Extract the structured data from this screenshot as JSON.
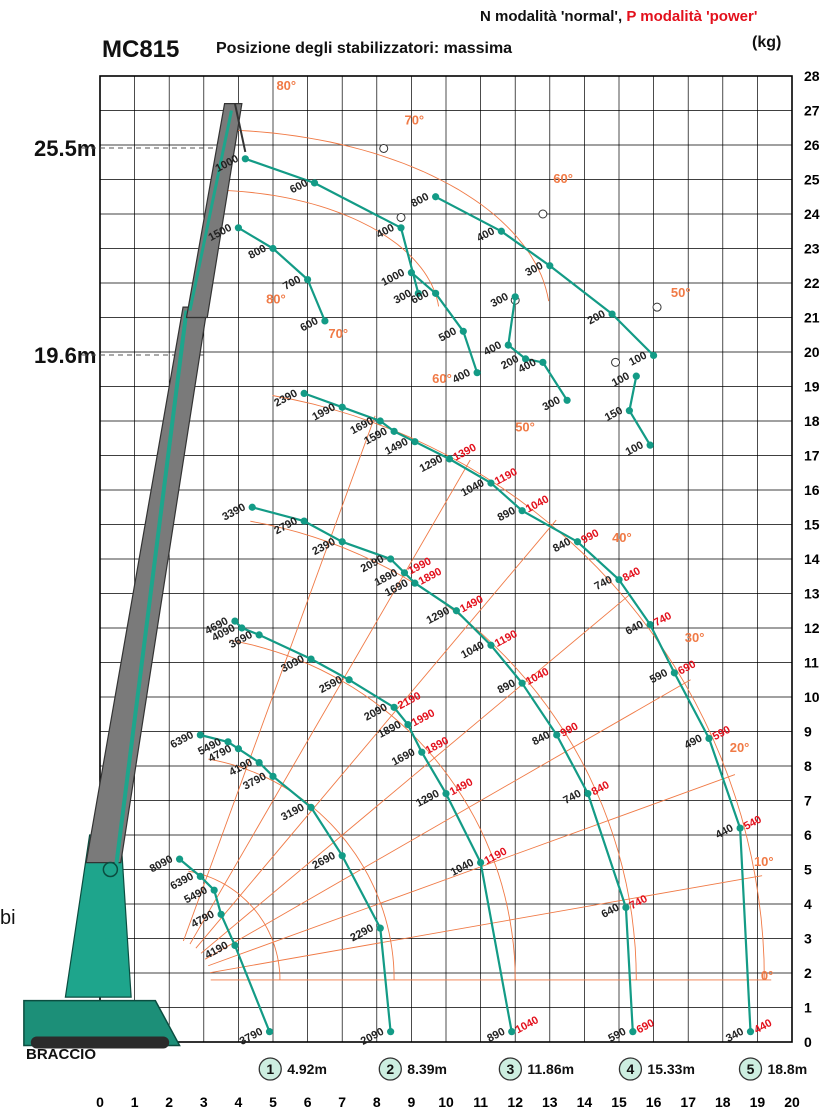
{
  "header": {
    "model": "MC815",
    "subtitle": "Posizione degli stabilizzatori: massima",
    "mode_normal": "N modalità 'normal',",
    "mode_power": "P modalità 'power'",
    "unit": "(kg)"
  },
  "heights": [
    "25.5m",
    "19.6m"
  ],
  "braccio": "BRACCIO",
  "fragment": "bi",
  "colors": {
    "teal": "#139b86",
    "orange": "#f07a46",
    "red": "#e3101c",
    "boom": "#7a7a7a",
    "grid": "#000000"
  },
  "axes": {
    "x_ticks": [
      0,
      1,
      2,
      3,
      4,
      5,
      6,
      7,
      8,
      9,
      10,
      11,
      12,
      13,
      14,
      15,
      16,
      17,
      18,
      19,
      20
    ],
    "y_ticks": [
      0,
      1,
      2,
      3,
      4,
      5,
      6,
      7,
      8,
      9,
      10,
      11,
      12,
      13,
      14,
      15,
      16,
      17,
      18,
      19,
      20,
      21,
      22,
      23,
      24,
      25,
      26,
      27,
      28
    ]
  },
  "reach_markers": [
    {
      "num": "1",
      "label": "4.92m",
      "x": 4.92
    },
    {
      "num": "2",
      "label": "8.39m",
      "x": 8.39
    },
    {
      "num": "3",
      "label": "11.86m",
      "x": 11.86
    },
    {
      "num": "4",
      "label": "15.33m",
      "x": 15.33
    },
    {
      "num": "5",
      "label": "18.8m",
      "x": 18.8
    }
  ],
  "main_curves": [
    {
      "id": 1,
      "points": [
        {
          "x": 4.9,
          "y": 0.3,
          "n": "3790"
        },
        {
          "x": 3.9,
          "y": 2.8,
          "n": "4190"
        },
        {
          "x": 3.5,
          "y": 3.7,
          "n": "4790"
        },
        {
          "x": 3.3,
          "y": 4.4,
          "n": "5490"
        },
        {
          "x": 2.9,
          "y": 4.8,
          "n": "6390"
        },
        {
          "x": 2.3,
          "y": 5.3,
          "n": "8090"
        }
      ]
    },
    {
      "id": 2,
      "points": [
        {
          "x": 8.4,
          "y": 0.3,
          "n": "2090"
        },
        {
          "x": 8.1,
          "y": 3.3,
          "n": "2290"
        },
        {
          "x": 7.0,
          "y": 5.4,
          "n": "2690"
        },
        {
          "x": 6.1,
          "y": 6.8,
          "n": "3190"
        },
        {
          "x": 5.0,
          "y": 7.7,
          "n": "3790"
        },
        {
          "x": 4.6,
          "y": 8.1,
          "n": "4190"
        },
        {
          "x": 4.0,
          "y": 8.5,
          "n": "4790"
        },
        {
          "x": 3.7,
          "y": 8.7,
          "n": "5490"
        },
        {
          "x": 2.9,
          "y": 8.9,
          "n": "6390"
        }
      ]
    },
    {
      "id": 3,
      "points": [
        {
          "x": 11.9,
          "y": 0.3,
          "n": "890",
          "p": "1040"
        },
        {
          "x": 11.0,
          "y": 5.2,
          "n": "1040",
          "p": "1190"
        },
        {
          "x": 10.0,
          "y": 7.2,
          "n": "1290",
          "p": "1490"
        },
        {
          "x": 9.3,
          "y": 8.4,
          "n": "1690",
          "p": "1890"
        },
        {
          "x": 8.9,
          "y": 9.2,
          "n": "1890",
          "p": "1990"
        },
        {
          "x": 8.5,
          "y": 9.7,
          "n": "2090",
          "p": "2190"
        },
        {
          "x": 7.2,
          "y": 10.5,
          "n": "2590"
        },
        {
          "x": 6.1,
          "y": 11.1,
          "n": "3090"
        },
        {
          "x": 4.6,
          "y": 11.8,
          "n": "3690"
        },
        {
          "x": 4.1,
          "y": 12.0,
          "n": "4090"
        },
        {
          "x": 3.9,
          "y": 12.2,
          "n": "4690"
        }
      ]
    },
    {
      "id": 4,
      "points": [
        {
          "x": 15.4,
          "y": 0.3,
          "n": "590",
          "p": "690"
        },
        {
          "x": 15.2,
          "y": 3.9,
          "n": "640",
          "p": "740"
        },
        {
          "x": 14.1,
          "y": 7.2,
          "n": "740",
          "p": "840"
        },
        {
          "x": 13.2,
          "y": 8.9,
          "n": "840",
          "p": "990"
        },
        {
          "x": 12.2,
          "y": 10.4,
          "n": "890",
          "p": "1040"
        },
        {
          "x": 11.3,
          "y": 11.5,
          "n": "1040",
          "p": "1190"
        },
        {
          "x": 10.3,
          "y": 12.5,
          "n": "1290",
          "p": "1490"
        },
        {
          "x": 9.1,
          "y": 13.3,
          "n": "1690",
          "p": "1890"
        },
        {
          "x": 8.8,
          "y": 13.6,
          "n": "1890",
          "p": "1990"
        },
        {
          "x": 8.4,
          "y": 14.0,
          "n": "2090"
        },
        {
          "x": 7.0,
          "y": 14.5,
          "n": "2390"
        },
        {
          "x": 5.9,
          "y": 15.1,
          "n": "2790"
        },
        {
          "x": 4.4,
          "y": 15.5,
          "n": "3390"
        }
      ]
    },
    {
      "id": 5,
      "points": [
        {
          "x": 18.8,
          "y": 0.3,
          "n": "340",
          "p": "440"
        },
        {
          "x": 18.5,
          "y": 6.2,
          "n": "440",
          "p": "540"
        },
        {
          "x": 17.6,
          "y": 8.8,
          "n": "490",
          "p": "590"
        },
        {
          "x": 16.6,
          "y": 10.7,
          "n": "590",
          "p": "690"
        },
        {
          "x": 15.9,
          "y": 12.1,
          "n": "640",
          "p": "740"
        },
        {
          "x": 15.0,
          "y": 13.4,
          "n": "740",
          "p": "840"
        },
        {
          "x": 13.8,
          "y": 14.5,
          "n": "840",
          "p": "990"
        },
        {
          "x": 12.2,
          "y": 15.4,
          "n": "890",
          "p": "1040"
        },
        {
          "x": 11.3,
          "y": 16.2,
          "n": "1040",
          "p": "1190"
        },
        {
          "x": 10.1,
          "y": 16.9,
          "n": "1290",
          "p": "1390"
        },
        {
          "x": 9.1,
          "y": 17.4,
          "n": "1490"
        },
        {
          "x": 8.5,
          "y": 17.7,
          "n": "1590"
        },
        {
          "x": 8.1,
          "y": 18.0,
          "n": "1690"
        },
        {
          "x": 7.0,
          "y": 18.4,
          "n": "1990"
        },
        {
          "x": 5.9,
          "y": 18.8,
          "n": "2390"
        }
      ]
    }
  ],
  "jib_upper_curves": [
    {
      "id": "u1",
      "points": [
        {
          "x": 4.2,
          "y": 25.6,
          "n": "1000"
        },
        {
          "x": 6.2,
          "y": 24.9,
          "n": "600"
        },
        {
          "x": 8.7,
          "y": 23.6,
          "n": "400"
        },
        {
          "x": 9.2,
          "y": 21.7,
          "n": "300"
        }
      ]
    },
    {
      "id": "u2",
      "points": [
        {
          "x": 9.7,
          "y": 24.5,
          "n": "800"
        },
        {
          "x": 11.6,
          "y": 23.5,
          "n": "400"
        },
        {
          "x": 13.0,
          "y": 22.5,
          "n": "300"
        },
        {
          "x": 14.8,
          "y": 21.1,
          "n": "200"
        },
        {
          "x": 16.0,
          "y": 19.9,
          "n": "100"
        }
      ]
    },
    {
      "id": "u3",
      "points": [
        {
          "x": 9.0,
          "y": 22.3,
          "n": "1000"
        },
        {
          "x": 9.7,
          "y": 21.7,
          "n": "600"
        },
        {
          "x": 10.5,
          "y": 20.6,
          "n": "500"
        },
        {
          "x": 10.9,
          "y": 19.4,
          "n": "400"
        }
      ]
    },
    {
      "id": "u4",
      "points": [
        {
          "x": 12.0,
          "y": 21.6,
          "n": "300"
        },
        {
          "x": 11.8,
          "y": 20.2,
          "n": "400"
        },
        {
          "x": 12.3,
          "y": 19.8,
          "n": "200"
        },
        {
          "x": 12.8,
          "y": 19.7,
          "n": "400"
        },
        {
          "x": 13.5,
          "y": 18.6,
          "n": "300"
        }
      ]
    },
    {
      "id": "u5",
      "points": [
        {
          "x": 15.5,
          "y": 19.3,
          "n": "100"
        },
        {
          "x": 15.3,
          "y": 18.3,
          "n": "150"
        },
        {
          "x": 15.9,
          "y": 17.3,
          "n": "100"
        }
      ]
    }
  ],
  "jib_mid_curves": [
    {
      "id": "m1",
      "points": [
        {
          "x": 4.0,
          "y": 23.6,
          "n": "1500"
        },
        {
          "x": 5.0,
          "y": 23.0,
          "n": "800"
        },
        {
          "x": 6.0,
          "y": 22.1,
          "n": "700"
        },
        {
          "x": 6.5,
          "y": 20.9,
          "n": "600"
        }
      ]
    }
  ],
  "angle_labels": [
    {
      "x": 5.1,
      "y": 27.6,
      "t": "80°"
    },
    {
      "x": 8.8,
      "y": 26.6,
      "t": "70°"
    },
    {
      "x": 13.1,
      "y": 24.9,
      "t": "60°"
    },
    {
      "x": 16.5,
      "y": 21.6,
      "t": "50°"
    },
    {
      "x": 4.8,
      "y": 21.4,
      "t": "80°"
    },
    {
      "x": 6.6,
      "y": 20.4,
      "t": "70°"
    },
    {
      "x": 9.6,
      "y": 19.1,
      "t": "60°"
    },
    {
      "x": 12.0,
      "y": 17.7,
      "t": "50°"
    },
    {
      "x": 14.8,
      "y": 14.5,
      "t": "40°"
    },
    {
      "x": 16.9,
      "y": 11.6,
      "t": "30°"
    },
    {
      "x": 18.2,
      "y": 8.4,
      "t": "20°"
    },
    {
      "x": 18.9,
      "y": 5.1,
      "t": "10°"
    },
    {
      "x": 19.1,
      "y": 1.8,
      "t": "0°"
    }
  ]
}
